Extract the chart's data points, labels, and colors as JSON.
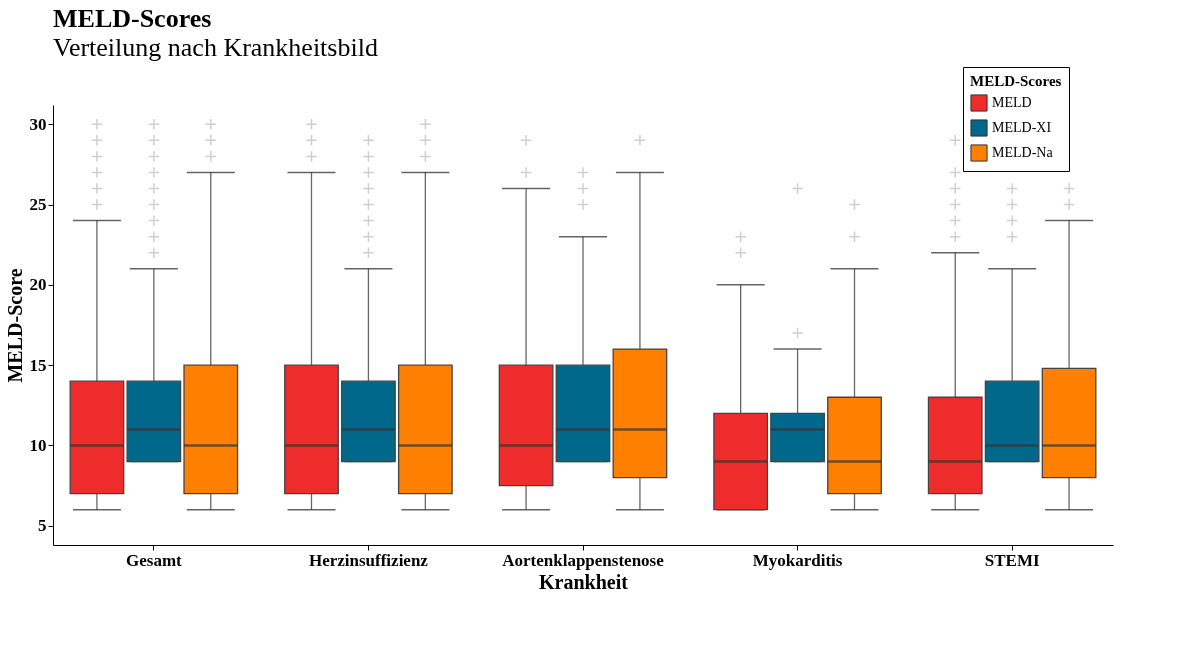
{
  "chart_data": {
    "type": "box",
    "title": "MELD-Scores",
    "subtitle": "Verteilung nach Krankheitsbild",
    "xlabel": "Krankheit",
    "ylabel": "MELD-Score",
    "legend_title": "MELD-Scores",
    "legend": "top right",
    "grid": false,
    "marker": "cross",
    "categories": [
      "Gesamt",
      "Herzinsuffizienz",
      "Aortenklappenstenose",
      "Myokarditis",
      "STEMI"
    ],
    "ylim": [
      3.8,
      31.2
    ],
    "yticks": [
      5,
      10,
      15,
      20,
      25,
      30
    ],
    "series": [
      {
        "name": "MELD",
        "color": "#ee2c2c",
        "boxes": [
          {
            "low": 6,
            "q1": 7,
            "median": 10,
            "q3": 14,
            "high": 24,
            "outliers": [
              25,
              26,
              27,
              28,
              29,
              30
            ]
          },
          {
            "low": 6,
            "q1": 7,
            "median": 10,
            "q3": 15,
            "high": 27,
            "outliers": [
              28,
              29,
              30
            ]
          },
          {
            "low": 6,
            "q1": 7.5,
            "median": 10,
            "q3": 15,
            "high": 26,
            "outliers": [
              27,
              29
            ]
          },
          {
            "low": 6,
            "q1": 6,
            "median": 9,
            "q3": 12,
            "high": 20,
            "outliers": [
              22,
              23
            ]
          },
          {
            "low": 6,
            "q1": 7,
            "median": 9,
            "q3": 13,
            "high": 22,
            "outliers": [
              23,
              24,
              25,
              26,
              27,
              29
            ]
          }
        ]
      },
      {
        "name": "MELD-XI",
        "color": "#00688b",
        "boxes": [
          {
            "low": 9,
            "q1": 9,
            "median": 11,
            "q3": 14,
            "high": 21,
            "outliers": [
              22,
              23,
              24,
              25,
              26,
              27,
              28,
              29,
              30
            ]
          },
          {
            "low": 9,
            "q1": 9,
            "median": 11,
            "q3": 14,
            "high": 21,
            "outliers": [
              22,
              23,
              24,
              25,
              26,
              27,
              28,
              29
            ]
          },
          {
            "low": 9,
            "q1": 9,
            "median": 11,
            "q3": 15,
            "high": 23,
            "outliers": [
              25,
              26,
              27
            ]
          },
          {
            "low": 9,
            "q1": 9,
            "median": 11,
            "q3": 12,
            "high": 16,
            "outliers": [
              17,
              26
            ]
          },
          {
            "low": 9,
            "q1": 9,
            "median": 10,
            "q3": 14,
            "high": 21,
            "outliers": [
              23,
              24,
              25,
              26
            ]
          }
        ]
      },
      {
        "name": "MELD-Na",
        "color": "#ff7f00",
        "boxes": [
          {
            "low": 6,
            "q1": 7,
            "median": 10,
            "q3": 15,
            "high": 27,
            "outliers": [
              28,
              29,
              30
            ]
          },
          {
            "low": 6,
            "q1": 7,
            "median": 10,
            "q3": 15,
            "high": 27,
            "outliers": [
              28,
              29,
              30
            ]
          },
          {
            "low": 6,
            "q1": 8,
            "median": 11,
            "q3": 16,
            "high": 27,
            "outliers": [
              29
            ]
          },
          {
            "low": 6,
            "q1": 7,
            "median": 9,
            "q3": 13,
            "high": 21,
            "outliers": [
              23,
              25
            ]
          },
          {
            "low": 6,
            "q1": 8,
            "median": 10,
            "q3": 14.8,
            "high": 24,
            "outliers": [
              25,
              26
            ]
          }
        ]
      }
    ]
  }
}
